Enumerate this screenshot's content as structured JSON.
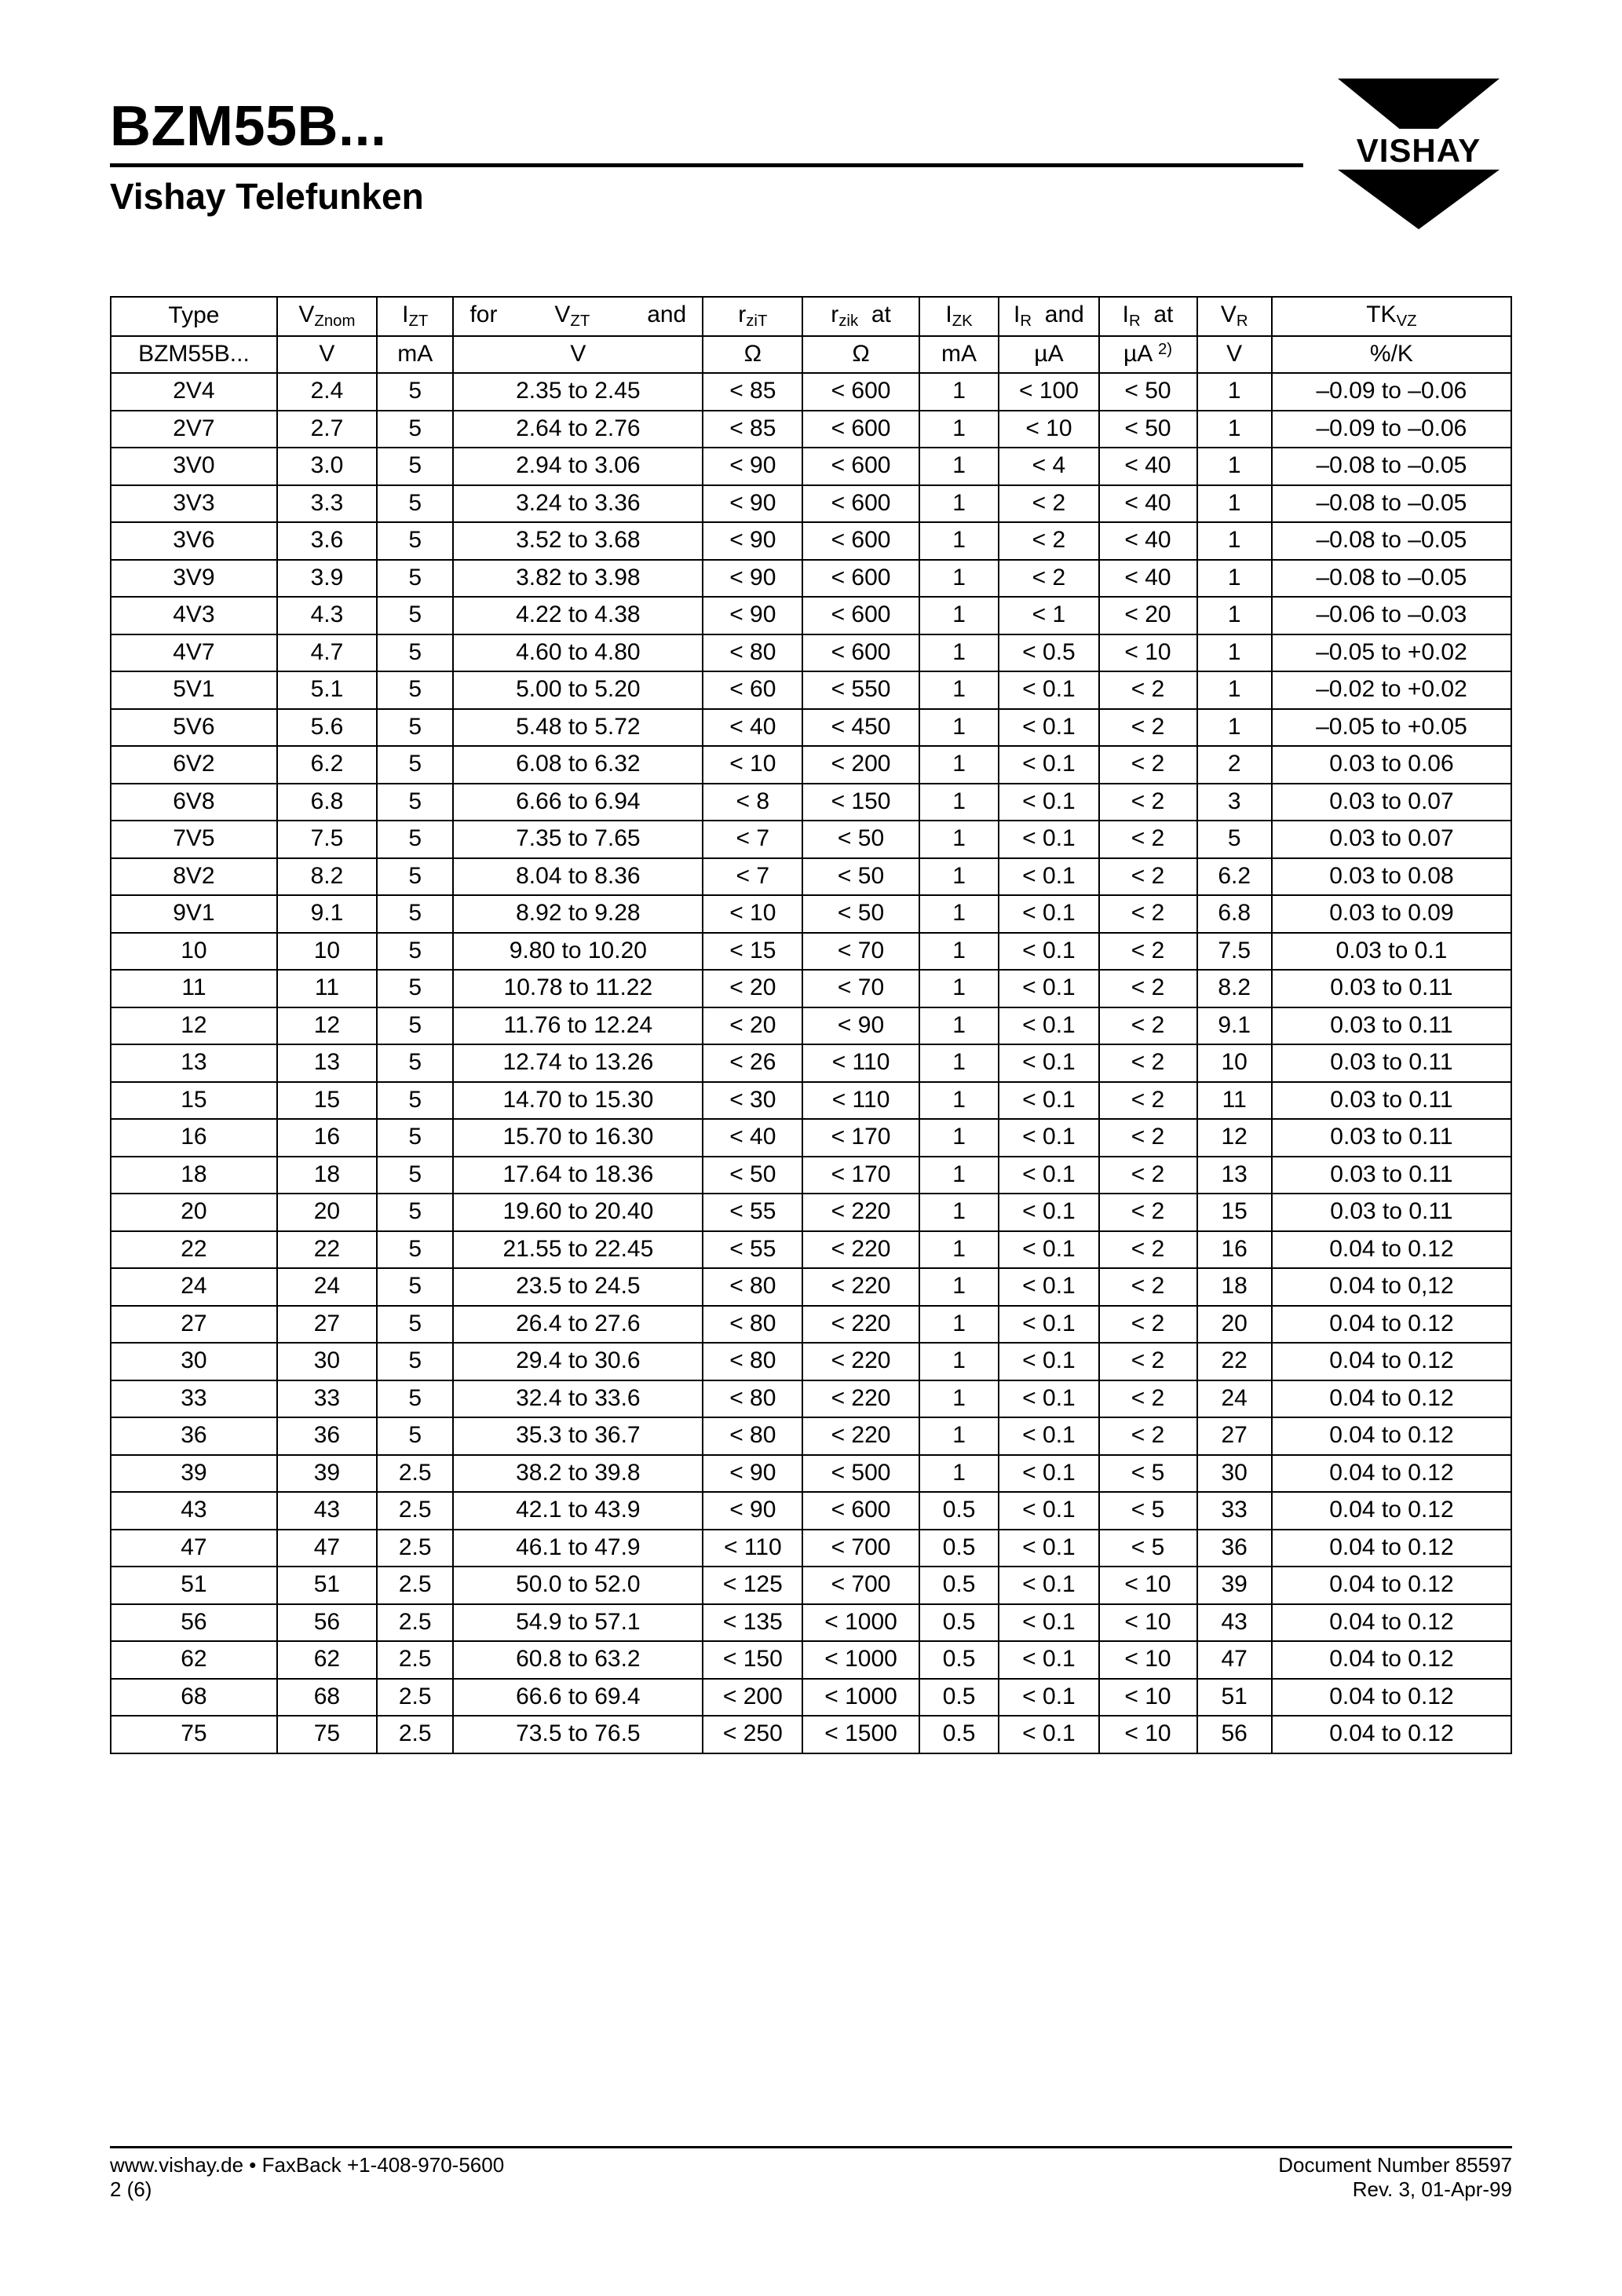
{
  "header": {
    "part": "BZM55B...",
    "subtitle": "Vishay Telefunken",
    "logo_text": "VISHAY"
  },
  "table": {
    "type": "table",
    "colors": {
      "border": "#000000",
      "bg": "#ffffff",
      "text": "#000000"
    },
    "header_row1": {
      "type": "Type",
      "vznom_html": "V<sub>Znom</sub>",
      "izt_html": "I<sub>ZT</sub>",
      "vzt_for": "for",
      "vzt_mid_html": "V<sub>ZT</sub>",
      "vzt_and": "and",
      "rzit_html": "r<sub>ziT</sub>",
      "rzik_pre_html": "r<sub>zik</sub>",
      "rzik_at": "at",
      "izk_html": "I<sub>ZK</sub>",
      "ir1_pre_html": "I<sub>R</sub>",
      "ir1_and": "and",
      "ir2_pre_html": "I<sub>R</sub>",
      "ir2_at": "at",
      "vr_html": "V<sub>R</sub>",
      "tk_html": "TK<sub>VZ</sub>"
    },
    "header_row2": {
      "type": "BZM55B...",
      "vznom": "V",
      "izt": "mA",
      "vzt": "V",
      "rzit": "Ω",
      "rzik": "Ω",
      "izk": "mA",
      "ir1": "µA",
      "ir2_html": "µA <sup>2)</sup>",
      "vr": "V",
      "tk": "%/K"
    },
    "columns": [
      "type",
      "vznom",
      "izt",
      "vzt",
      "rzit",
      "rzik",
      "izk",
      "ir1",
      "ir2",
      "vr",
      "tk"
    ],
    "rows": [
      [
        "2V4",
        "2.4",
        "5",
        "2.35 to 2.45",
        "< 85",
        "< 600",
        "1",
        "< 100",
        "< 50",
        "1",
        "–0.09 to –0.06"
      ],
      [
        "2V7",
        "2.7",
        "5",
        "2.64 to 2.76",
        "< 85",
        "< 600",
        "1",
        "< 10",
        "< 50",
        "1",
        "–0.09 to –0.06"
      ],
      [
        "3V0",
        "3.0",
        "5",
        "2.94 to 3.06",
        "< 90",
        "< 600",
        "1",
        "< 4",
        "< 40",
        "1",
        "–0.08 to –0.05"
      ],
      [
        "3V3",
        "3.3",
        "5",
        "3.24 to 3.36",
        "< 90",
        "< 600",
        "1",
        "< 2",
        "< 40",
        "1",
        "–0.08 to –0.05"
      ],
      [
        "3V6",
        "3.6",
        "5",
        "3.52 to 3.68",
        "< 90",
        "< 600",
        "1",
        "< 2",
        "< 40",
        "1",
        "–0.08 to –0.05"
      ],
      [
        "3V9",
        "3.9",
        "5",
        "3.82 to 3.98",
        "< 90",
        "< 600",
        "1",
        "< 2",
        "< 40",
        "1",
        "–0.08 to –0.05"
      ],
      [
        "4V3",
        "4.3",
        "5",
        "4.22 to 4.38",
        "< 90",
        "< 600",
        "1",
        "< 1",
        "< 20",
        "1",
        "–0.06 to –0.03"
      ],
      [
        "4V7",
        "4.7",
        "5",
        "4.60 to 4.80",
        "< 80",
        "< 600",
        "1",
        "< 0.5",
        "< 10",
        "1",
        "–0.05 to +0.02"
      ],
      [
        "5V1",
        "5.1",
        "5",
        "5.00 to 5.20",
        "< 60",
        "< 550",
        "1",
        "< 0.1",
        "< 2",
        "1",
        "–0.02 to +0.02"
      ],
      [
        "5V6",
        "5.6",
        "5",
        "5.48 to 5.72",
        "< 40",
        "< 450",
        "1",
        "< 0.1",
        "< 2",
        "1",
        "–0.05 to +0.05"
      ],
      [
        "6V2",
        "6.2",
        "5",
        "6.08 to 6.32",
        "< 10",
        "< 200",
        "1",
        "< 0.1",
        "< 2",
        "2",
        "0.03 to 0.06"
      ],
      [
        "6V8",
        "6.8",
        "5",
        "6.66 to 6.94",
        "< 8",
        "< 150",
        "1",
        "< 0.1",
        "< 2",
        "3",
        "0.03 to 0.07"
      ],
      [
        "7V5",
        "7.5",
        "5",
        "7.35 to 7.65",
        "< 7",
        "< 50",
        "1",
        "< 0.1",
        "< 2",
        "5",
        "0.03 to 0.07"
      ],
      [
        "8V2",
        "8.2",
        "5",
        "8.04 to 8.36",
        "< 7",
        "< 50",
        "1",
        "< 0.1",
        "< 2",
        "6.2",
        "0.03 to 0.08"
      ],
      [
        "9V1",
        "9.1",
        "5",
        "8.92 to 9.28",
        "< 10",
        "< 50",
        "1",
        "< 0.1",
        "< 2",
        "6.8",
        "0.03 to 0.09"
      ],
      [
        "10",
        "10",
        "5",
        "9.80 to 10.20",
        "< 15",
        "< 70",
        "1",
        "< 0.1",
        "< 2",
        "7.5",
        "0.03 to 0.1"
      ],
      [
        "11",
        "11",
        "5",
        "10.78 to 11.22",
        "< 20",
        "< 70",
        "1",
        "< 0.1",
        "< 2",
        "8.2",
        "0.03 to 0.11"
      ],
      [
        "12",
        "12",
        "5",
        "11.76 to 12.24",
        "< 20",
        "< 90",
        "1",
        "< 0.1",
        "< 2",
        "9.1",
        "0.03 to 0.11"
      ],
      [
        "13",
        "13",
        "5",
        "12.74 to 13.26",
        "< 26",
        "< 110",
        "1",
        "< 0.1",
        "< 2",
        "10",
        "0.03 to 0.11"
      ],
      [
        "15",
        "15",
        "5",
        "14.70 to 15.30",
        "< 30",
        "< 110",
        "1",
        "< 0.1",
        "< 2",
        "11",
        "0.03 to 0.11"
      ],
      [
        "16",
        "16",
        "5",
        "15.70 to 16.30",
        "< 40",
        "< 170",
        "1",
        "< 0.1",
        "< 2",
        "12",
        "0.03 to 0.11"
      ],
      [
        "18",
        "18",
        "5",
        "17.64 to 18.36",
        "< 50",
        "< 170",
        "1",
        "< 0.1",
        "< 2",
        "13",
        "0.03 to 0.11"
      ],
      [
        "20",
        "20",
        "5",
        "19.60 to 20.40",
        "< 55",
        "< 220",
        "1",
        "< 0.1",
        "< 2",
        "15",
        "0.03 to 0.11"
      ],
      [
        "22",
        "22",
        "5",
        "21.55 to 22.45",
        "< 55",
        "< 220",
        "1",
        "< 0.1",
        "< 2",
        "16",
        "0.04 to 0.12"
      ],
      [
        "24",
        "24",
        "5",
        "23.5 to 24.5",
        "< 80",
        "< 220",
        "1",
        "< 0.1",
        "< 2",
        "18",
        "0.04 to 0,12"
      ],
      [
        "27",
        "27",
        "5",
        "26.4 to 27.6",
        "< 80",
        "< 220",
        "1",
        "< 0.1",
        "< 2",
        "20",
        "0.04 to 0.12"
      ],
      [
        "30",
        "30",
        "5",
        "29.4 to 30.6",
        "< 80",
        "< 220",
        "1",
        "< 0.1",
        "< 2",
        "22",
        "0.04 to 0.12"
      ],
      [
        "33",
        "33",
        "5",
        "32.4 to 33.6",
        "< 80",
        "< 220",
        "1",
        "< 0.1",
        "< 2",
        "24",
        "0.04 to 0.12"
      ],
      [
        "36",
        "36",
        "5",
        "35.3 to 36.7",
        "< 80",
        "< 220",
        "1",
        "< 0.1",
        "< 2",
        "27",
        "0.04 to 0.12"
      ],
      [
        "39",
        "39",
        "2.5",
        "38.2 to 39.8",
        "< 90",
        "< 500",
        "1",
        "< 0.1",
        "< 5",
        "30",
        "0.04 to 0.12"
      ],
      [
        "43",
        "43",
        "2.5",
        "42.1 to 43.9",
        "< 90",
        "< 600",
        "0.5",
        "< 0.1",
        "< 5",
        "33",
        "0.04 to 0.12"
      ],
      [
        "47",
        "47",
        "2.5",
        "46.1 to 47.9",
        "< 110",
        "< 700",
        "0.5",
        "< 0.1",
        "< 5",
        "36",
        "0.04 to 0.12"
      ],
      [
        "51",
        "51",
        "2.5",
        "50.0 to 52.0",
        "< 125",
        "< 700",
        "0.5",
        "< 0.1",
        "< 10",
        "39",
        "0.04 to 0.12"
      ],
      [
        "56",
        "56",
        "2.5",
        "54.9 to 57.1",
        "< 135",
        "< 1000",
        "0.5",
        "< 0.1",
        "< 10",
        "43",
        "0.04 to 0.12"
      ],
      [
        "62",
        "62",
        "2.5",
        "60.8 to 63.2",
        "< 150",
        "< 1000",
        "0.5",
        "< 0.1",
        "< 10",
        "47",
        "0.04 to 0.12"
      ],
      [
        "68",
        "68",
        "2.5",
        "66.6 to 69.4",
        "< 200",
        "< 1000",
        "0.5",
        "< 0.1",
        "< 10",
        "51",
        "0.04 to 0.12"
      ],
      [
        "75",
        "75",
        "2.5",
        "73.5 to 76.5",
        "< 250",
        "< 1500",
        "0.5",
        "< 0.1",
        "< 10",
        "56",
        "0.04 to 0.12"
      ]
    ]
  },
  "footer": {
    "left1": "www.vishay.de • FaxBack +1-408-970-5600",
    "left2": "2 (6)",
    "right1": "Document Number 85597",
    "right2": "Rev. 3, 01-Apr-99"
  }
}
